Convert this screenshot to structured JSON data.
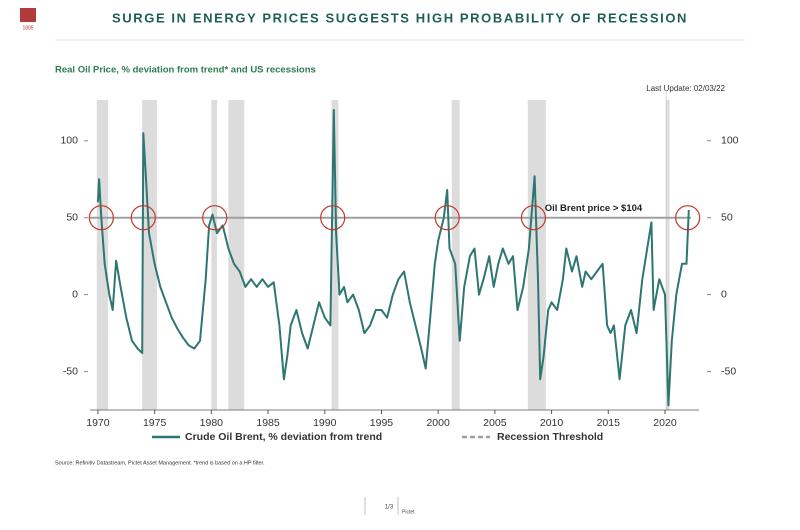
{
  "header": {
    "logo": "1805",
    "title": "SURGE IN ENERGY PRICES SUGGESTS HIGH PROBABILITY OF RECESSION",
    "subtitle": "Real Oil Price, % deviation from trend* and US recessions",
    "last_update": "Last Update: 02/03/22"
  },
  "chart_data": {
    "type": "line",
    "x": [
      1970.0,
      1970.1,
      1970.3,
      1970.6,
      1971.0,
      1971.3,
      1971.6,
      1972.0,
      1972.5,
      1973.0,
      1973.5,
      1973.9,
      1974.0,
      1974.2,
      1974.5,
      1975.0,
      1975.5,
      1976.0,
      1976.5,
      1977.0,
      1977.5,
      1978.0,
      1978.5,
      1979.0,
      1979.5,
      1979.8,
      1980.1,
      1980.5,
      1981.0,
      1981.5,
      1982.0,
      1982.5,
      1983.0,
      1983.5,
      1984.0,
      1984.5,
      1985.0,
      1985.5,
      1986.0,
      1986.4,
      1986.7,
      1987.0,
      1987.5,
      1988.0,
      1988.5,
      1989.0,
      1989.5,
      1990.0,
      1990.5,
      1990.8,
      1991.0,
      1991.3,
      1991.7,
      1992.0,
      1992.5,
      1993.0,
      1993.5,
      1994.0,
      1994.5,
      1995.0,
      1995.5,
      1996.0,
      1996.5,
      1997.0,
      1997.5,
      1998.0,
      1998.5,
      1998.9,
      1999.3,
      1999.7,
      2000.0,
      2000.5,
      2000.8,
      2001.0,
      2001.5,
      2001.9,
      2002.3,
      2002.8,
      2003.2,
      2003.6,
      2004.0,
      2004.5,
      2004.9,
      2005.3,
      2005.7,
      2006.2,
      2006.6,
      2007.0,
      2007.5,
      2008.0,
      2008.5,
      2008.8,
      2009.0,
      2009.3,
      2009.7,
      2010.0,
      2010.5,
      2011.0,
      2011.3,
      2011.8,
      2012.2,
      2012.7,
      2013.0,
      2013.5,
      2014.0,
      2014.5,
      2014.9,
      2015.2,
      2015.5,
      2016.0,
      2016.5,
      2017.0,
      2017.5,
      2018.0,
      2018.8,
      2019.0,
      2019.5,
      2020.0,
      2020.3,
      2020.6,
      2021.0,
      2021.5,
      2021.9,
      2022.1
    ],
    "series": [
      {
        "name": "Crude Oil Brent, % deviation from trend",
        "color": "#2e7672",
        "values": [
          60,
          75,
          50,
          20,
          0,
          -10,
          22,
          5,
          -15,
          -30,
          -35,
          -38,
          105,
          80,
          40,
          20,
          5,
          -5,
          -15,
          -22,
          -28,
          -33,
          -35,
          -30,
          10,
          45,
          52,
          40,
          45,
          30,
          20,
          15,
          5,
          10,
          5,
          10,
          5,
          8,
          -20,
          -55,
          -40,
          -20,
          -10,
          -25,
          -35,
          -20,
          -5,
          -15,
          -20,
          120,
          40,
          0,
          5,
          -5,
          0,
          -10,
          -25,
          -20,
          -10,
          -10,
          -15,
          0,
          10,
          15,
          -5,
          -20,
          -35,
          -48,
          -15,
          20,
          35,
          50,
          68,
          30,
          20,
          -30,
          5,
          25,
          30,
          0,
          10,
          25,
          5,
          20,
          30,
          20,
          25,
          -10,
          5,
          30,
          77,
          10,
          -55,
          -40,
          -10,
          -5,
          -10,
          10,
          30,
          15,
          25,
          5,
          15,
          10,
          15,
          20,
          -20,
          -25,
          -20,
          -55,
          -20,
          -10,
          -25,
          10,
          47,
          -10,
          10,
          0,
          -72,
          -30,
          0,
          20,
          20,
          55
        ]
      }
    ],
    "threshold": {
      "name": "Recession Threshold",
      "value": 50,
      "color": "#a0a0a0"
    },
    "recessions": [
      [
        1969.9,
        1970.9
      ],
      [
        1973.9,
        1975.2
      ],
      [
        1980.0,
        1980.5
      ],
      [
        1981.5,
        1982.9
      ],
      [
        1990.6,
        1991.2
      ],
      [
        2001.2,
        2001.9
      ],
      [
        2007.9,
        2009.5
      ],
      [
        2020.1,
        2020.4
      ]
    ],
    "circled_x": [
      1970.3,
      1974.0,
      1980.3,
      1990.7,
      2000.8,
      2008.4,
      2022.0
    ],
    "annotation": "Oil Brent price > $104",
    "xlim": [
      1969.3,
      2023
    ],
    "ylim": [
      -75,
      133
    ],
    "y2lim": [
      -75,
      133
    ],
    "xticks": [
      1970,
      1975,
      1980,
      1985,
      1990,
      1995,
      2000,
      2005,
      2010,
      2015,
      2020
    ],
    "yticks": [
      -50,
      0,
      50,
      100
    ],
    "y2ticks": [
      -50,
      0,
      50,
      100
    ]
  },
  "footer": {
    "source": "Source: Refinitiv Datastream, Pictet Asset Management. *trend is based on a HP filter.",
    "page": "1/3",
    "brand": "Pictet"
  }
}
